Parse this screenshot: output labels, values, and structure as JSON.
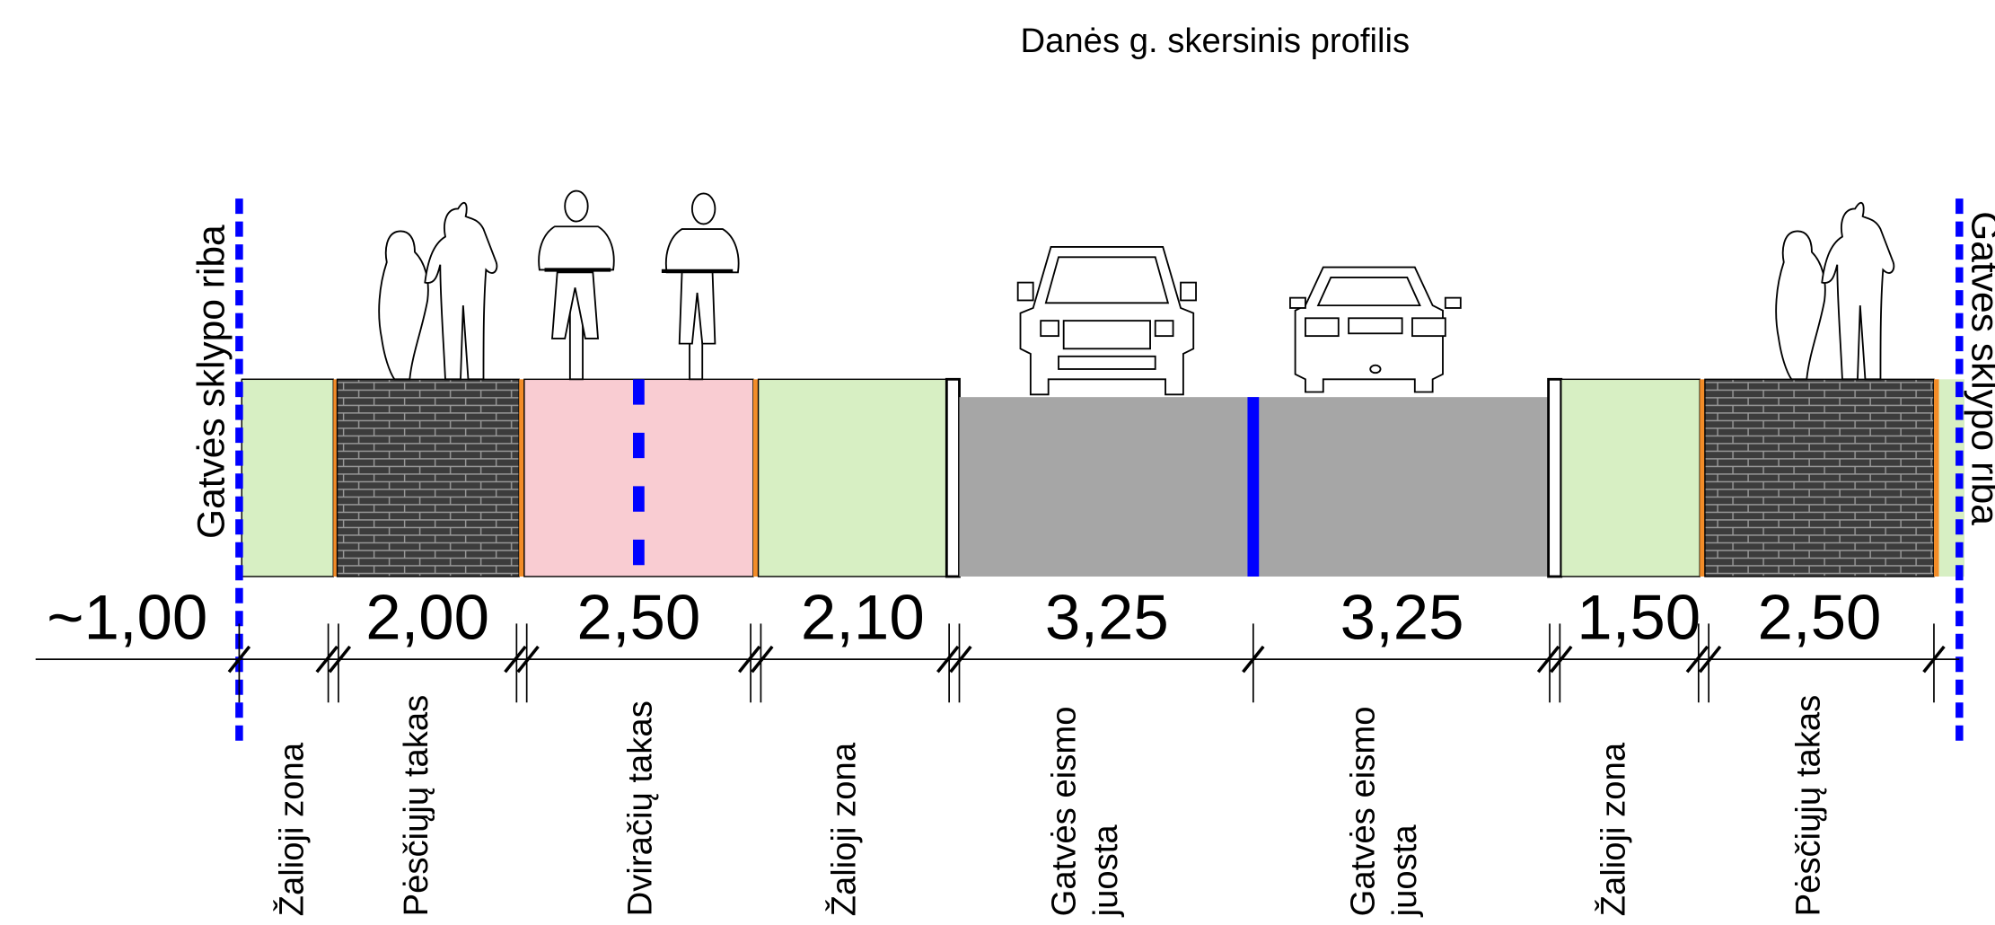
{
  "title": "Danės g. skersinis profilis",
  "boundary_labels": [
    "Gatvės sklypo riba",
    "Gatvės sklypo riba"
  ],
  "width_labels": [
    "~1,00",
    "2,00",
    "2,50",
    "2,10",
    "3,25",
    "3,25",
    "1,50",
    "2,50"
  ],
  "zone_labels": [
    [
      "Žalioji zona"
    ],
    [
      "Pėsčiųjų takas"
    ],
    [
      "Dviračių takas"
    ],
    [
      "Žalioji zona"
    ],
    [
      "Gatvės eismo",
      "juosta"
    ],
    [
      "Gatvės eismo",
      "juosta"
    ],
    [
      "Žalioji zona"
    ],
    [
      "Pėsčiųjų takas"
    ]
  ]
}
